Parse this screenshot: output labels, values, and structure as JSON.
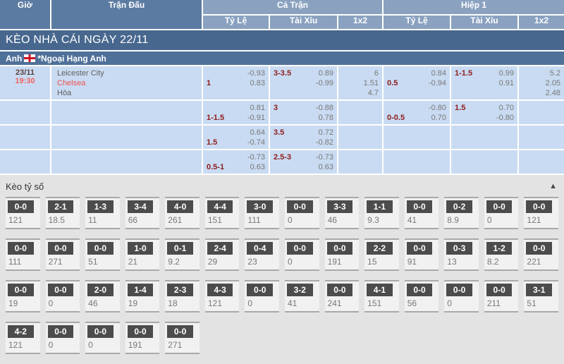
{
  "header": {
    "time": "Giờ",
    "match": "Trận Đấu",
    "full_time": "Cả Trận",
    "first_half": "Hiệp 1",
    "handicap": "Tỷ Lệ",
    "over_under": "Tài Xỉu",
    "one_x_two": "1x2"
  },
  "section_title": "KÈO NHÀ CÁI NGÀY 22/11",
  "league": {
    "country": "Anh",
    "name": "*Ngoại Hạng Anh",
    "flag": "england-flag"
  },
  "match": {
    "date": "23/11",
    "time": "19:30",
    "home": "Leicester City",
    "away": "Chelsea",
    "draw_label": "Hòa"
  },
  "odds_rows": [
    {
      "ft_hdp": {
        "hdp": "1",
        "top": "-0.93",
        "bottom": "0.83"
      },
      "ft_ou": {
        "hdp": "3-3.5",
        "top": "0.89",
        "bottom": "-0.99"
      },
      "ft_1x2": [
        "6",
        "1.51",
        "4.7"
      ],
      "h1_hdp": {
        "hdp": "0.5",
        "top": "0.84",
        "bottom": "-0.94"
      },
      "h1_ou": {
        "hdp": "1-1.5",
        "top": "0.99",
        "bottom": "0.91"
      },
      "h1_1x2": [
        "5.2",
        "2.05",
        "2.48"
      ]
    },
    {
      "ft_hdp": {
        "hdp": "1-1.5",
        "top": "0.81",
        "bottom": "-0.91"
      },
      "ft_ou": {
        "hdp": "3",
        "top": "-0.88",
        "bottom": "0.78"
      },
      "ft_1x2": [],
      "h1_hdp": {
        "hdp": "0-0.5",
        "top": "-0.80",
        "bottom": "0.70"
      },
      "h1_ou": {
        "hdp": "1.5",
        "top": "0.70",
        "bottom": "-0.80"
      },
      "h1_1x2": []
    },
    {
      "ft_hdp": {
        "hdp": "1.5",
        "top": "0.64",
        "bottom": "-0.74"
      },
      "ft_ou": {
        "hdp": "3.5",
        "top": "0.72",
        "bottom": "-0.82"
      },
      "ft_1x2": [],
      "h1_hdp": null,
      "h1_ou": null,
      "h1_1x2": []
    },
    {
      "ft_hdp": {
        "hdp": "0.5-1",
        "top": "-0.73",
        "bottom": "0.63"
      },
      "ft_ou": {
        "hdp": "2.5-3",
        "top": "-0.73",
        "bottom": "0.63"
      },
      "ft_1x2": [],
      "h1_hdp": null,
      "h1_ou": null,
      "h1_1x2": []
    }
  ],
  "score_section": {
    "title": "Kèo tỷ số",
    "collapse_icon": "▲",
    "rows": [
      [
        {
          "score": "0-0",
          "odds": "121"
        },
        {
          "score": "2-1",
          "odds": "18.5"
        },
        {
          "score": "1-3",
          "odds": "11"
        },
        {
          "score": "3-4",
          "odds": "66"
        },
        {
          "score": "4-0",
          "odds": "261"
        },
        {
          "score": "4-4",
          "odds": "151"
        },
        {
          "score": "3-0",
          "odds": "111"
        },
        {
          "score": "0-0",
          "odds": "0"
        },
        {
          "score": "3-3",
          "odds": "46"
        },
        {
          "score": "1-1",
          "odds": "9.3"
        },
        {
          "score": "0-0",
          "odds": "41"
        },
        {
          "score": "0-2",
          "odds": "8.9"
        },
        {
          "score": "0-0",
          "odds": "0"
        },
        {
          "score": "0-0",
          "odds": "121"
        }
      ],
      [
        {
          "score": "0-0",
          "odds": "111"
        },
        {
          "score": "0-0",
          "odds": "271"
        },
        {
          "score": "0-0",
          "odds": "51"
        },
        {
          "score": "1-0",
          "odds": "21"
        },
        {
          "score": "0-1",
          "odds": "9.2"
        },
        {
          "score": "2-4",
          "odds": "29"
        },
        {
          "score": "0-4",
          "odds": "23"
        },
        {
          "score": "0-0",
          "odds": "0"
        },
        {
          "score": "0-0",
          "odds": "191"
        },
        {
          "score": "2-2",
          "odds": "15"
        },
        {
          "score": "0-0",
          "odds": "91"
        },
        {
          "score": "0-3",
          "odds": "13"
        },
        {
          "score": "1-2",
          "odds": "8.2"
        },
        {
          "score": "0-0",
          "odds": "221"
        }
      ],
      [
        {
          "score": "0-0",
          "odds": "19"
        },
        {
          "score": "0-0",
          "odds": "0"
        },
        {
          "score": "2-0",
          "odds": "46"
        },
        {
          "score": "1-4",
          "odds": "19"
        },
        {
          "score": "2-3",
          "odds": "18"
        },
        {
          "score": "4-3",
          "odds": "121"
        },
        {
          "score": "0-0",
          "odds": "0"
        },
        {
          "score": "3-2",
          "odds": "41"
        },
        {
          "score": "0-0",
          "odds": "241"
        },
        {
          "score": "4-1",
          "odds": "151"
        },
        {
          "score": "0-0",
          "odds": "56"
        },
        {
          "score": "0-0",
          "odds": "0"
        },
        {
          "score": "0-0",
          "odds": "211"
        },
        {
          "score": "3-1",
          "odds": "51"
        }
      ],
      [
        {
          "score": "4-2",
          "odds": "121"
        },
        {
          "score": "0-0",
          "odds": "0"
        },
        {
          "score": "0-0",
          "odds": "0"
        },
        {
          "score": "0-0",
          "odds": "191"
        },
        {
          "score": "0-0",
          "odds": "271"
        }
      ]
    ]
  },
  "colors": {
    "header_dark": "#5c7ba2",
    "header_light": "#8aa2c0",
    "section_bar": "#47678e",
    "league_bar": "#4f7099",
    "row_bg": "#c9dbf2",
    "handicap_text": "#8e1c1c",
    "odds_text": "#787878",
    "time_text": "#f0625c",
    "away_team_text": "#ef5350",
    "score_label_bg": "#4c4c4c",
    "score_section_bg": "#e3e3e3"
  }
}
